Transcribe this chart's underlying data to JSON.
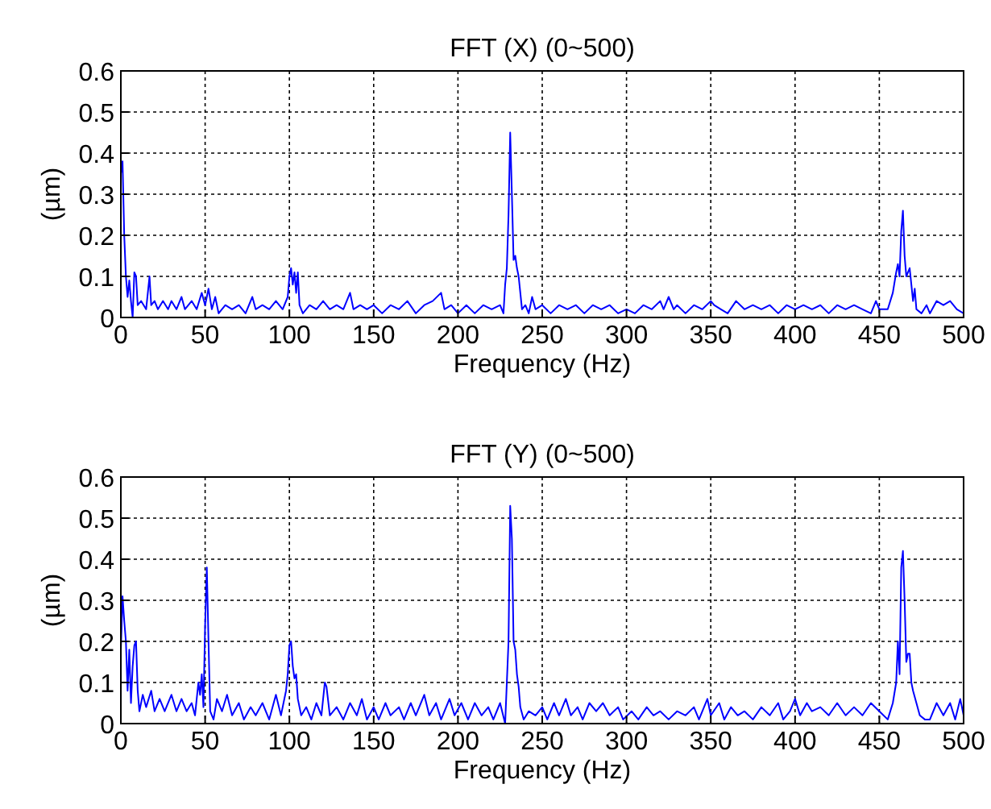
{
  "chart_data": [
    {
      "type": "line",
      "title": "FFT (X) (0~500)",
      "xlabel": "Frequency (Hz)",
      "ylabel": "(µm)",
      "xlim": [
        0,
        500
      ],
      "xticks": [
        0,
        50,
        100,
        150,
        200,
        250,
        300,
        350,
        400,
        450,
        500
      ],
      "ylim": [
        0,
        0.6
      ],
      "yticks": [
        0,
        0.1,
        0.2,
        0.3,
        0.4,
        0.5,
        0.6
      ],
      "grid": true,
      "series": [
        {
          "color": "#0000ff",
          "x": [
            0,
            1,
            2,
            3,
            4,
            5,
            6,
            7,
            8,
            9,
            10,
            12,
            15,
            17,
            18,
            20,
            22,
            25,
            28,
            30,
            33,
            36,
            38,
            42,
            45,
            48,
            50,
            52,
            54,
            56,
            58,
            62,
            66,
            70,
            74,
            78,
            80,
            84,
            88,
            92,
            96,
            99,
            100,
            101,
            102,
            103,
            104,
            105,
            106,
            108,
            112,
            116,
            120,
            124,
            128,
            132,
            136,
            138,
            142,
            146,
            150,
            155,
            160,
            165,
            170,
            175,
            180,
            185,
            190,
            192,
            196,
            200,
            205,
            210,
            215,
            220,
            225,
            227,
            228,
            229,
            230,
            231,
            232,
            233,
            234,
            235,
            236,
            237,
            238,
            240,
            242,
            244,
            246,
            250,
            255,
            260,
            265,
            270,
            275,
            280,
            285,
            290,
            295,
            300,
            305,
            310,
            315,
            320,
            322,
            325,
            328,
            330,
            335,
            340,
            345,
            350,
            352,
            356,
            360,
            365,
            370,
            375,
            380,
            385,
            390,
            395,
            400,
            405,
            410,
            415,
            420,
            425,
            430,
            435,
            440,
            445,
            448,
            450,
            455,
            458,
            460,
            461,
            462,
            463,
            464,
            465,
            466,
            467,
            468,
            469,
            470,
            471,
            472,
            475,
            478,
            480,
            484,
            488,
            492,
            496,
            500
          ],
          "values": [
            0.35,
            0.38,
            0.2,
            0.1,
            0.05,
            0.09,
            0.04,
            0.0,
            0.11,
            0.1,
            0.03,
            0.04,
            0.02,
            0.1,
            0.03,
            0.04,
            0.02,
            0.04,
            0.02,
            0.04,
            0.02,
            0.05,
            0.02,
            0.04,
            0.02,
            0.06,
            0.03,
            0.07,
            0.02,
            0.05,
            0.01,
            0.03,
            0.02,
            0.03,
            0.01,
            0.05,
            0.02,
            0.03,
            0.02,
            0.04,
            0.02,
            0.05,
            0.1,
            0.12,
            0.08,
            0.11,
            0.06,
            0.11,
            0.03,
            0.01,
            0.03,
            0.02,
            0.04,
            0.02,
            0.03,
            0.02,
            0.06,
            0.02,
            0.03,
            0.02,
            0.03,
            0.01,
            0.03,
            0.02,
            0.04,
            0.01,
            0.03,
            0.04,
            0.06,
            0.02,
            0.03,
            0.01,
            0.03,
            0.01,
            0.03,
            0.02,
            0.03,
            0.01,
            0.08,
            0.12,
            0.25,
            0.45,
            0.3,
            0.14,
            0.15,
            0.12,
            0.1,
            0.06,
            0.02,
            0.03,
            0.01,
            0.05,
            0.02,
            0.03,
            0.01,
            0.03,
            0.02,
            0.03,
            0.01,
            0.03,
            0.02,
            0.03,
            0.01,
            0.02,
            0.01,
            0.03,
            0.02,
            0.04,
            0.02,
            0.05,
            0.02,
            0.03,
            0.01,
            0.03,
            0.02,
            0.04,
            0.03,
            0.02,
            0.01,
            0.04,
            0.02,
            0.03,
            0.02,
            0.03,
            0.01,
            0.03,
            0.02,
            0.03,
            0.02,
            0.03,
            0.01,
            0.03,
            0.02,
            0.03,
            0.02,
            0.01,
            0.04,
            0.02,
            0.02,
            0.06,
            0.11,
            0.13,
            0.1,
            0.21,
            0.26,
            0.15,
            0.1,
            0.11,
            0.12,
            0.08,
            0.04,
            0.07,
            0.02,
            0.01,
            0.03,
            0.01,
            0.04,
            0.03,
            0.04,
            0.02,
            0.01
          ]
        }
      ]
    },
    {
      "type": "line",
      "title": "FFT (Y) (0~500)",
      "xlabel": "Frequency (Hz)",
      "ylabel": "(µm)",
      "xlim": [
        0,
        500
      ],
      "xticks": [
        0,
        50,
        100,
        150,
        200,
        250,
        300,
        350,
        400,
        450,
        500
      ],
      "ylim": [
        0,
        0.6
      ],
      "yticks": [
        0,
        0.1,
        0.2,
        0.3,
        0.4,
        0.5,
        0.6
      ],
      "grid": true,
      "series": [
        {
          "color": "#0000ff",
          "x": [
            0,
            1,
            2,
            3,
            4,
            5,
            6,
            7,
            8,
            9,
            10,
            11,
            13,
            15,
            18,
            20,
            23,
            26,
            30,
            33,
            36,
            39,
            42,
            44,
            46,
            47,
            48,
            49,
            50,
            51,
            52,
            53,
            55,
            57,
            60,
            63,
            66,
            70,
            73,
            77,
            80,
            84,
            88,
            92,
            95,
            98,
            99,
            100,
            101,
            102,
            103,
            104,
            105,
            107,
            110,
            113,
            116,
            119,
            121,
            122,
            124,
            128,
            132,
            136,
            140,
            143,
            146,
            150,
            153,
            157,
            160,
            165,
            168,
            172,
            175,
            180,
            183,
            187,
            190,
            195,
            198,
            202,
            206,
            210,
            214,
            218,
            221,
            225,
            228,
            229,
            230,
            231,
            232,
            233,
            234,
            235,
            236,
            237,
            239,
            242,
            246,
            250,
            253,
            257,
            260,
            264,
            267,
            271,
            274,
            278,
            282,
            286,
            290,
            295,
            298,
            303,
            307,
            312,
            316,
            320,
            325,
            330,
            335,
            340,
            343,
            348,
            350,
            355,
            358,
            362,
            366,
            370,
            375,
            380,
            385,
            390,
            393,
            397,
            400,
            403,
            407,
            410,
            415,
            420,
            425,
            430,
            435,
            440,
            445,
            450,
            455,
            458,
            460,
            461,
            462,
            463,
            464,
            465,
            466,
            467,
            468,
            469,
            470,
            472,
            474,
            477,
            480,
            484,
            488,
            492,
            495,
            498,
            500
          ],
          "values": [
            0.18,
            0.31,
            0.25,
            0.2,
            0.08,
            0.18,
            0.05,
            0.14,
            0.19,
            0.2,
            0.08,
            0.03,
            0.07,
            0.04,
            0.08,
            0.03,
            0.06,
            0.03,
            0.07,
            0.03,
            0.06,
            0.03,
            0.05,
            0.02,
            0.1,
            0.07,
            0.12,
            0.04,
            0.24,
            0.38,
            0.2,
            0.03,
            0.01,
            0.06,
            0.03,
            0.07,
            0.02,
            0.05,
            0.01,
            0.04,
            0.02,
            0.05,
            0.01,
            0.07,
            0.02,
            0.08,
            0.12,
            0.19,
            0.2,
            0.14,
            0.11,
            0.12,
            0.06,
            0.02,
            0.04,
            0.01,
            0.05,
            0.02,
            0.1,
            0.09,
            0.02,
            0.04,
            0.01,
            0.05,
            0.02,
            0.06,
            0.01,
            0.04,
            0.01,
            0.05,
            0.02,
            0.04,
            0.01,
            0.05,
            0.02,
            0.07,
            0.02,
            0.05,
            0.01,
            0.06,
            0.02,
            0.05,
            0.01,
            0.05,
            0.02,
            0.04,
            0.01,
            0.05,
            0.0,
            0.1,
            0.2,
            0.53,
            0.45,
            0.2,
            0.18,
            0.12,
            0.09,
            0.04,
            0.01,
            0.03,
            0.02,
            0.04,
            0.01,
            0.05,
            0.02,
            0.06,
            0.02,
            0.04,
            0.01,
            0.05,
            0.03,
            0.05,
            0.02,
            0.04,
            0.01,
            0.03,
            0.01,
            0.04,
            0.02,
            0.03,
            0.01,
            0.03,
            0.02,
            0.04,
            0.01,
            0.06,
            0.02,
            0.05,
            0.01,
            0.04,
            0.02,
            0.03,
            0.01,
            0.04,
            0.02,
            0.05,
            0.01,
            0.03,
            0.06,
            0.02,
            0.05,
            0.03,
            0.04,
            0.02,
            0.05,
            0.02,
            0.04,
            0.02,
            0.05,
            0.03,
            0.01,
            0.05,
            0.1,
            0.2,
            0.12,
            0.38,
            0.42,
            0.3,
            0.15,
            0.17,
            0.17,
            0.1,
            0.08,
            0.05,
            0.02,
            0.01,
            0.01,
            0.05,
            0.02,
            0.05,
            0.01,
            0.06,
            0.02
          ]
        }
      ]
    }
  ]
}
